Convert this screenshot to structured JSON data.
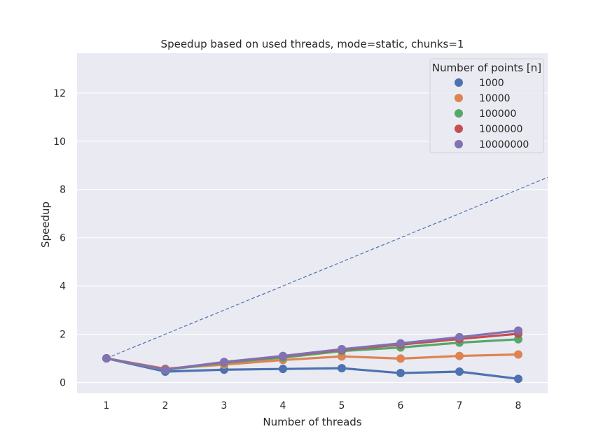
{
  "chart_data": {
    "type": "line",
    "title": "Speedup based on used threads, mode=static, chunks=1",
    "xlabel": "Number of threads",
    "ylabel": "Speedup",
    "categories": [
      "1",
      "2",
      "3",
      "4",
      "5",
      "6",
      "7",
      "8"
    ],
    "x": [
      1,
      2,
      3,
      4,
      5,
      6,
      7,
      8
    ],
    "xlim": [
      0.5,
      8.5
    ],
    "ylim": [
      -0.45,
      13.65
    ],
    "yticks": [
      "0",
      "2",
      "4",
      "6",
      "8",
      "10",
      "12"
    ],
    "ytick_values": [
      0,
      2,
      4,
      6,
      8,
      10,
      12
    ],
    "grid": true,
    "legend": {
      "title": "Number of points [n]",
      "placement": "top-right"
    },
    "reference_line": {
      "style": "dashed",
      "color": "#4c72b0",
      "from": [
        1,
        1
      ],
      "to": [
        8.5,
        8.5
      ]
    },
    "series": [
      {
        "name": "1000",
        "color": "#4c72b0",
        "values": [
          1.0,
          0.45,
          0.53,
          0.56,
          0.59,
          0.39,
          0.45,
          0.15
        ]
      },
      {
        "name": "10000",
        "color": "#dd8452",
        "values": [
          1.0,
          0.57,
          0.74,
          0.93,
          1.08,
          0.99,
          1.1,
          1.16
        ]
      },
      {
        "name": "100000",
        "color": "#55a868",
        "values": [
          1.0,
          0.52,
          0.82,
          1.03,
          1.3,
          1.45,
          1.65,
          1.79
        ]
      },
      {
        "name": "1000000",
        "color": "#c44e52",
        "values": [
          1.0,
          0.54,
          0.84,
          1.08,
          1.35,
          1.57,
          1.8,
          2.02
        ]
      },
      {
        "name": "10000000",
        "color": "#8172b3",
        "values": [
          1.0,
          0.53,
          0.85,
          1.1,
          1.38,
          1.62,
          1.88,
          2.15
        ]
      }
    ]
  }
}
